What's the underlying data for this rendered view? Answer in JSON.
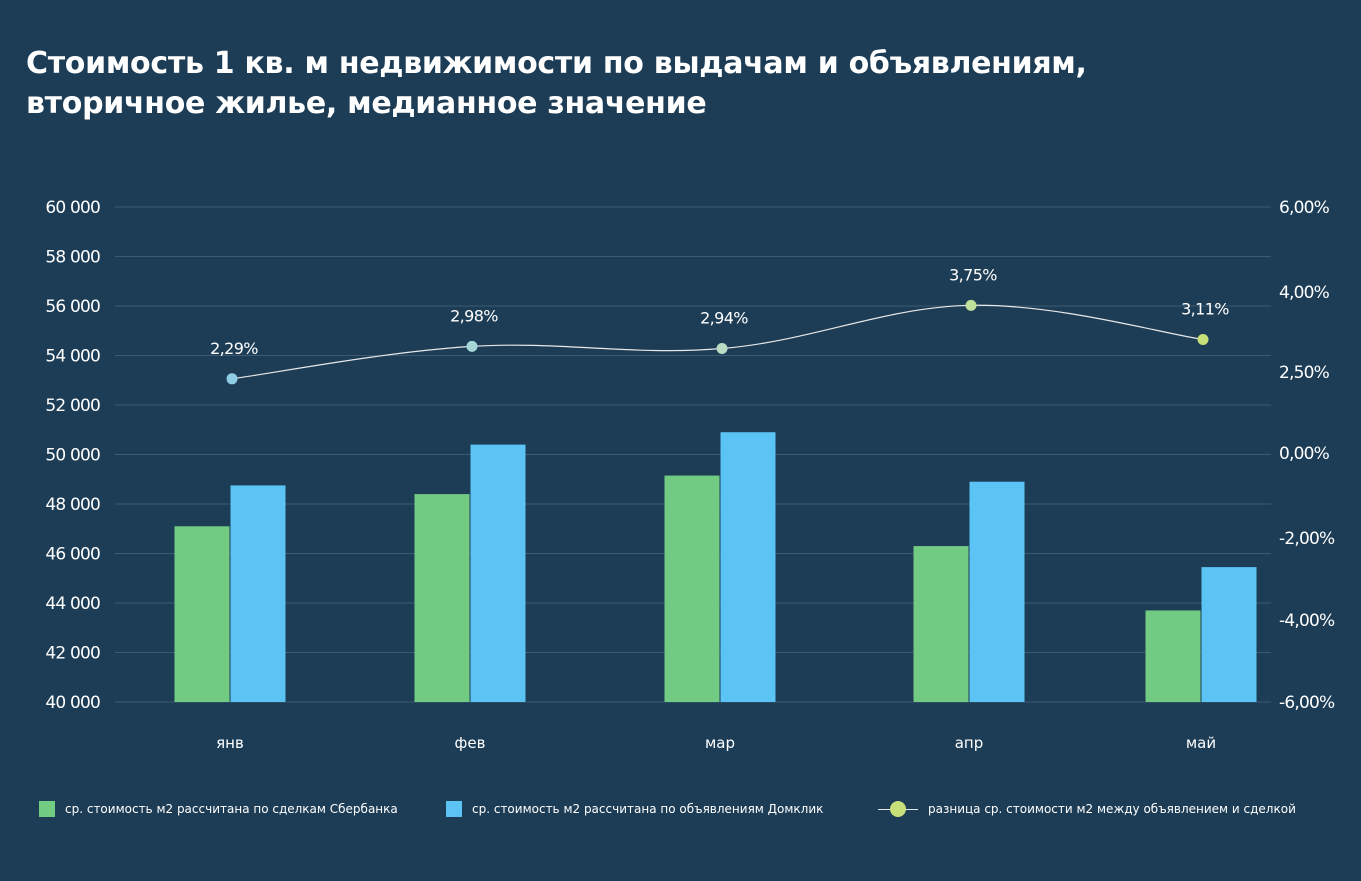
{
  "title_lines": [
    "Стоимость 1 кв. м недвижимости по выдачам и объявлениям,",
    "вторичное жилье, медианное значение"
  ],
  "legend": {
    "bar1_label": "ср. стоимость м2 рассчитана по сделкам Сбербанка",
    "bar2_label": "ср. стоимость м2 рассчитана по объявлениям Домклик",
    "line_label": "разница ср. стоимости м2 между объявлением и сделкой"
  },
  "colors": {
    "background": "#1d3d56",
    "bar1": "#72cb83",
    "bar2": "#5bc4f5",
    "line": "#e8e8e8",
    "gridline": "#3c5a73"
  },
  "chart_data": {
    "type": "bar",
    "categories": [
      "янв",
      "фев",
      "мар",
      "апр",
      "май"
    ],
    "series": [
      {
        "name": "ср. стоимость м2 рассчитана по сделкам Сбербанка",
        "type": "bar",
        "axis": "left",
        "color": "#72cb83",
        "values": [
          47100,
          48400,
          49150,
          46300,
          43700
        ]
      },
      {
        "name": "ср. стоимость м2 рассчитана по объявлениям Домклик",
        "type": "bar",
        "axis": "left",
        "color": "#5bc4f5",
        "values": [
          48750,
          50400,
          50900,
          48900,
          45450
        ]
      },
      {
        "name": "разница ср. стоимости м2 между объявлением и сделкой",
        "type": "line",
        "axis": "right",
        "color": "#e8e8e8",
        "values": [
          2.29,
          2.98,
          2.94,
          3.75,
          3.11
        ],
        "labels": [
          "2,29%",
          "2,98%",
          "2,94%",
          "3,75%",
          "3,11%"
        ],
        "marker_colors": [
          "#8fcde6",
          "#a6d6d6",
          "#b8dcc4",
          "#c0df9a",
          "#c8e07a"
        ]
      }
    ],
    "left_axis": {
      "ylim": [
        40000,
        60000
      ],
      "ticks": [
        "40 000",
        "42 000",
        "44 000",
        "46 000",
        "48 000",
        "50 000",
        "52 000",
        "54 000",
        "56 000",
        "58 000",
        "60 000"
      ]
    },
    "right_axis": {
      "ylim": [
        -6,
        6
      ],
      "tick_values": [
        -6,
        -4,
        -2,
        0,
        2.5,
        4,
        6
      ],
      "tick_labels": [
        "-6,00%",
        "-4,00%",
        "-2,00%",
        "0,00%",
        "2,50%",
        "4,00%",
        "6,00%"
      ]
    },
    "grid": true,
    "legend_position": "bottom"
  }
}
